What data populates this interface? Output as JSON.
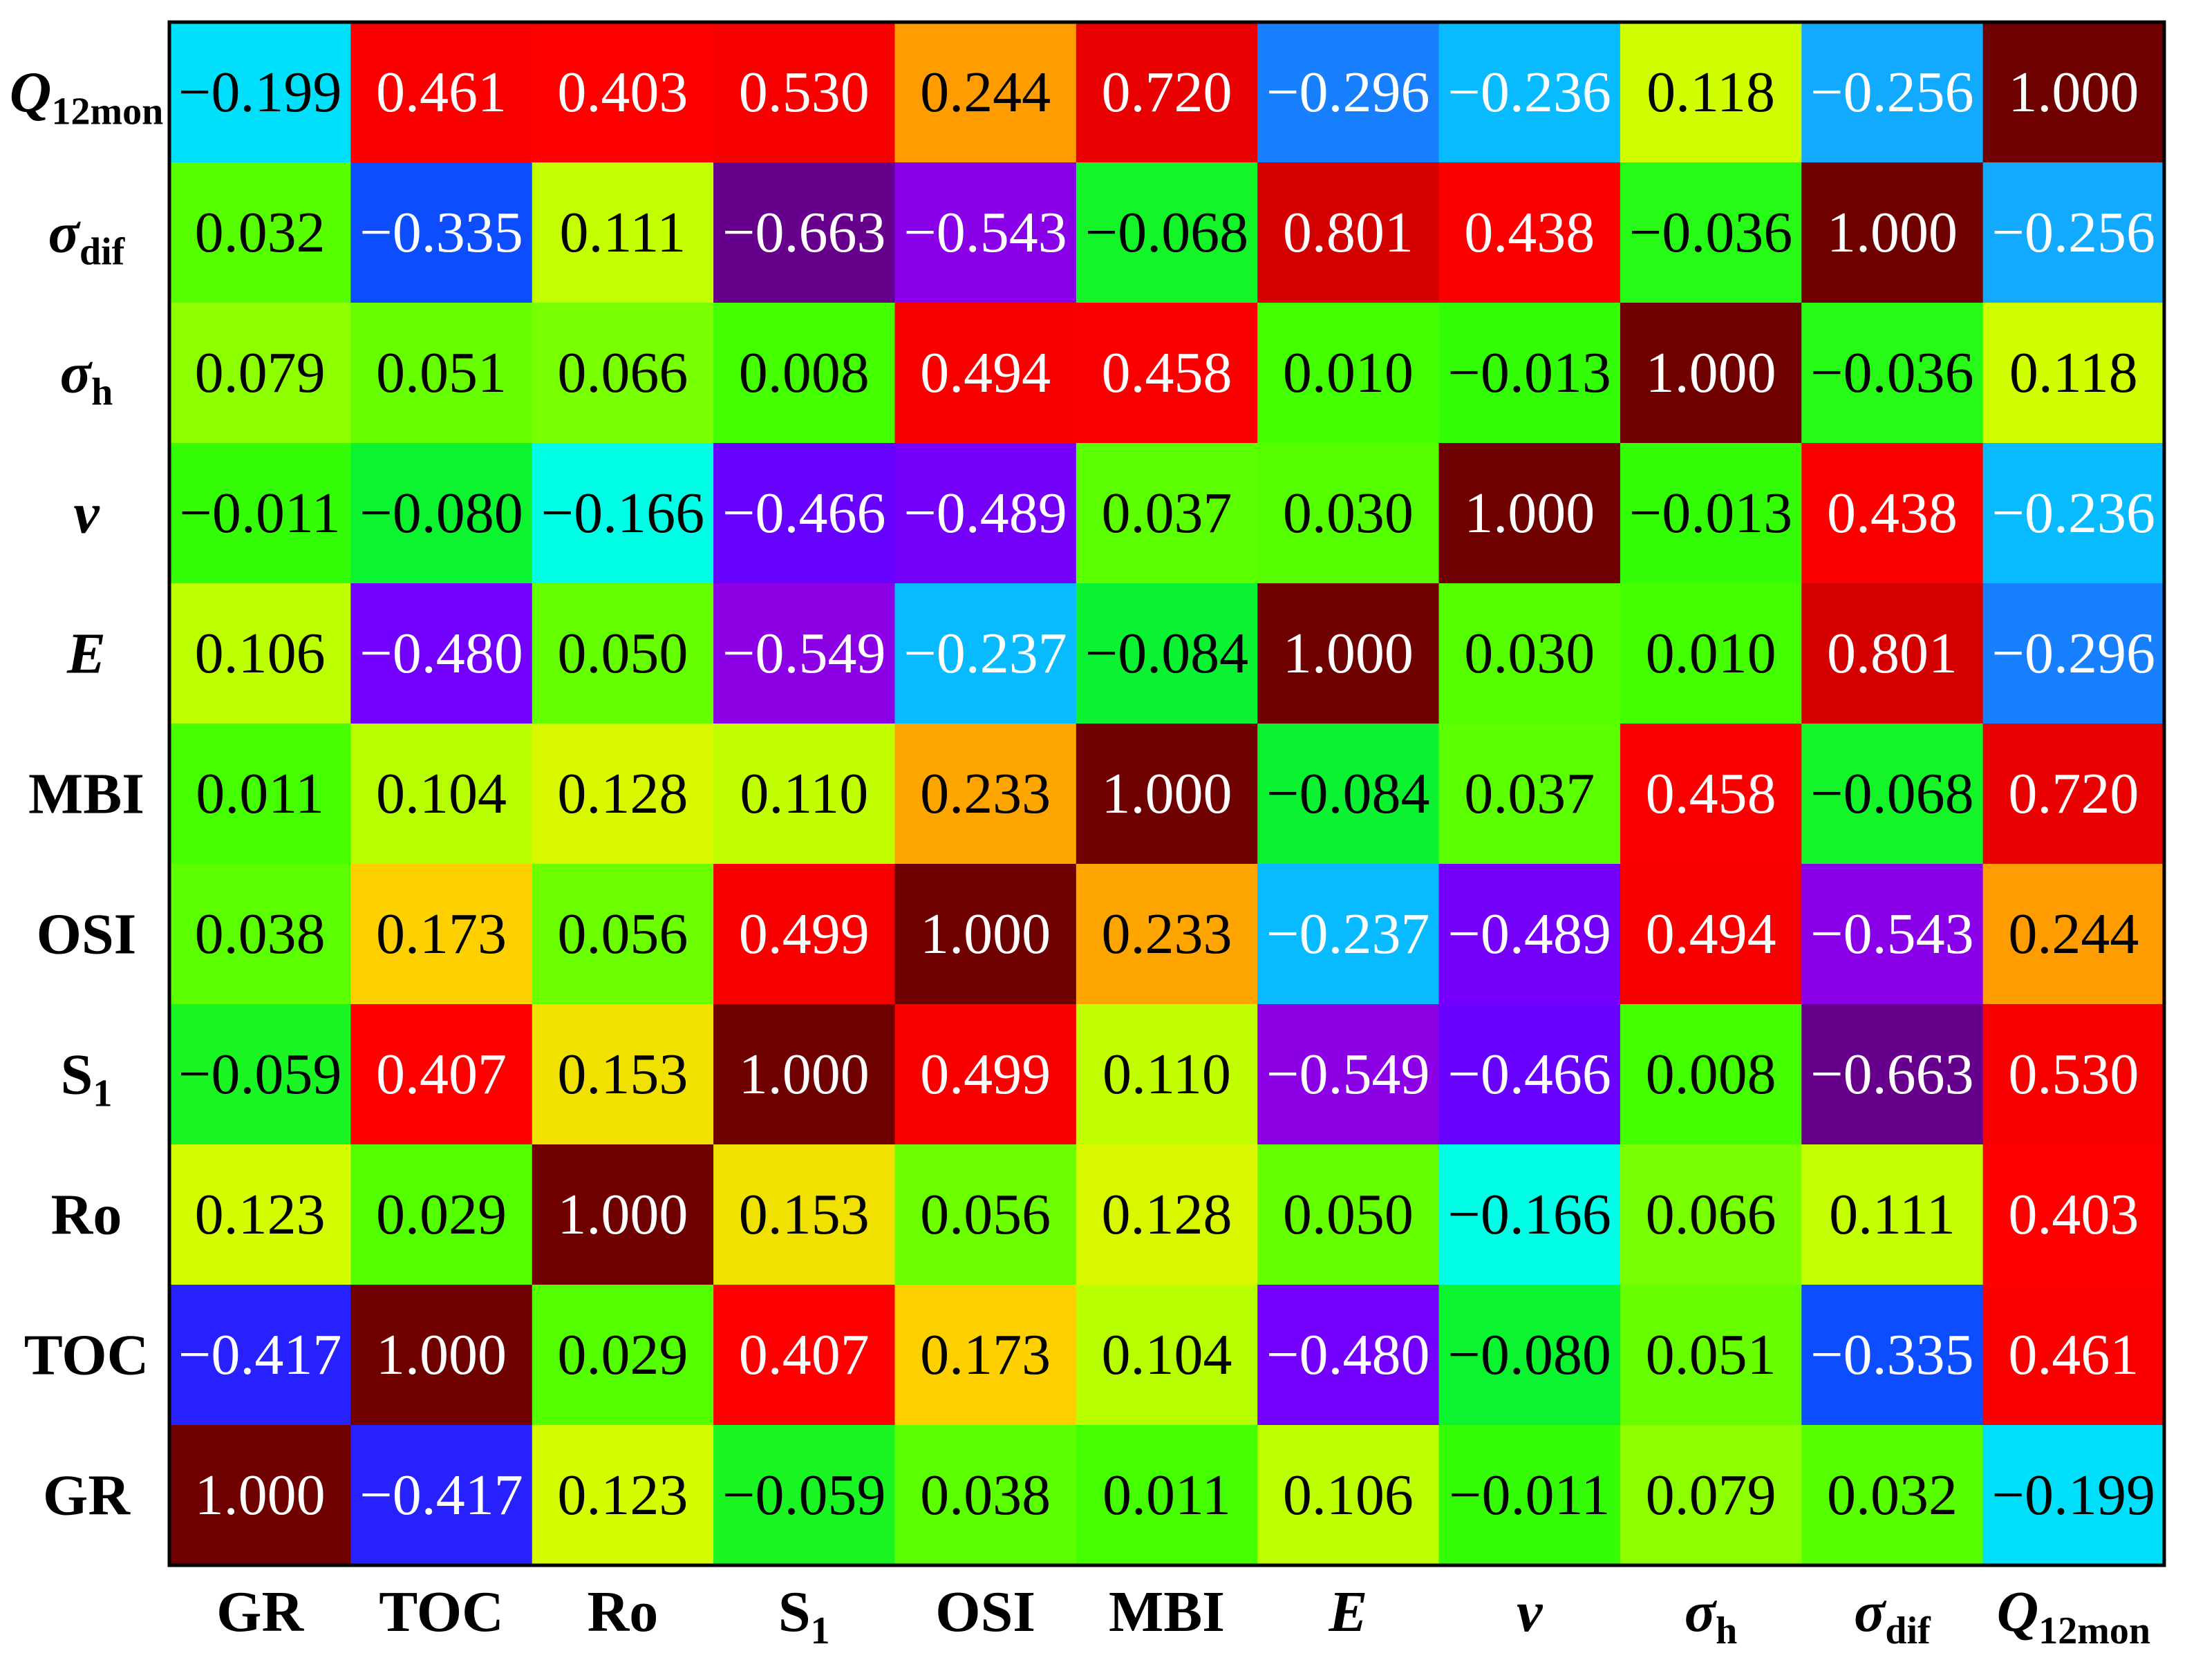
{
  "chart_data": {
    "type": "heatmap",
    "title": "",
    "xlabel": "",
    "ylabel": "",
    "x_labels": [
      {
        "base": "GR",
        "sub": "",
        "italic": false
      },
      {
        "base": "TOC",
        "sub": "",
        "italic": false
      },
      {
        "base": "Ro",
        "sub": "",
        "italic": false
      },
      {
        "base": "S",
        "sub": "1",
        "italic": false
      },
      {
        "base": "OSI",
        "sub": "",
        "italic": false
      },
      {
        "base": "MBI",
        "sub": "",
        "italic": false
      },
      {
        "base": "E",
        "sub": "",
        "italic": true
      },
      {
        "base": "v",
        "sub": "",
        "italic": true
      },
      {
        "base": "σ",
        "sub": "h",
        "italic": true
      },
      {
        "base": "σ",
        "sub": "dif",
        "italic": true
      },
      {
        "base": "Q",
        "sub": "12mon",
        "italic": true
      }
    ],
    "y_labels_top_to_bottom": [
      {
        "base": "Q",
        "sub": "12mon",
        "italic": true
      },
      {
        "base": "σ",
        "sub": "dif",
        "italic": true
      },
      {
        "base": "σ",
        "sub": "h",
        "italic": true
      },
      {
        "base": "v",
        "sub": "",
        "italic": true
      },
      {
        "base": "E",
        "sub": "",
        "italic": true
      },
      {
        "base": "MBI",
        "sub": "",
        "italic": false
      },
      {
        "base": "OSI",
        "sub": "",
        "italic": false
      },
      {
        "base": "S",
        "sub": "1",
        "italic": false
      },
      {
        "base": "Ro",
        "sub": "",
        "italic": false
      },
      {
        "base": "TOC",
        "sub": "",
        "italic": false
      },
      {
        "base": "GR",
        "sub": "",
        "italic": false
      }
    ],
    "rows_top_to_bottom": [
      [
        -0.199,
        0.461,
        0.403,
        0.53,
        0.244,
        0.72,
        -0.296,
        -0.236,
        0.118,
        -0.256,
        1.0
      ],
      [
        0.032,
        -0.335,
        0.111,
        -0.663,
        -0.543,
        -0.068,
        0.801,
        0.438,
        -0.036,
        1.0,
        -0.256
      ],
      [
        0.079,
        0.051,
        0.066,
        0.008,
        0.494,
        0.458,
        0.01,
        -0.013,
        1.0,
        -0.036,
        0.118
      ],
      [
        -0.011,
        -0.08,
        -0.166,
        -0.466,
        -0.489,
        0.037,
        0.03,
        1.0,
        -0.013,
        0.438,
        -0.236
      ],
      [
        0.106,
        -0.48,
        0.05,
        -0.549,
        -0.237,
        -0.084,
        1.0,
        0.03,
        0.01,
        0.801,
        -0.296
      ],
      [
        0.011,
        0.104,
        0.128,
        0.11,
        0.233,
        1.0,
        -0.084,
        0.037,
        0.458,
        -0.068,
        0.72
      ],
      [
        0.038,
        0.173,
        0.056,
        0.499,
        1.0,
        0.233,
        -0.237,
        -0.489,
        0.494,
        -0.543,
        0.244
      ],
      [
        -0.059,
        0.407,
        0.153,
        1.0,
        0.499,
        0.11,
        -0.549,
        -0.466,
        0.008,
        -0.663,
        0.53
      ],
      [
        0.123,
        0.029,
        1.0,
        0.153,
        0.056,
        0.128,
        0.05,
        -0.166,
        0.066,
        0.111,
        0.403
      ],
      [
        -0.417,
        1.0,
        0.029,
        0.407,
        0.173,
        0.104,
        -0.48,
        -0.08,
        0.051,
        -0.335,
        0.461
      ],
      [
        1.0,
        -0.417,
        0.123,
        -0.059,
        0.038,
        0.011,
        0.106,
        -0.011,
        0.079,
        0.032,
        -0.199
      ]
    ],
    "value_range": [
      -1,
      1
    ],
    "colormap": "jet"
  }
}
